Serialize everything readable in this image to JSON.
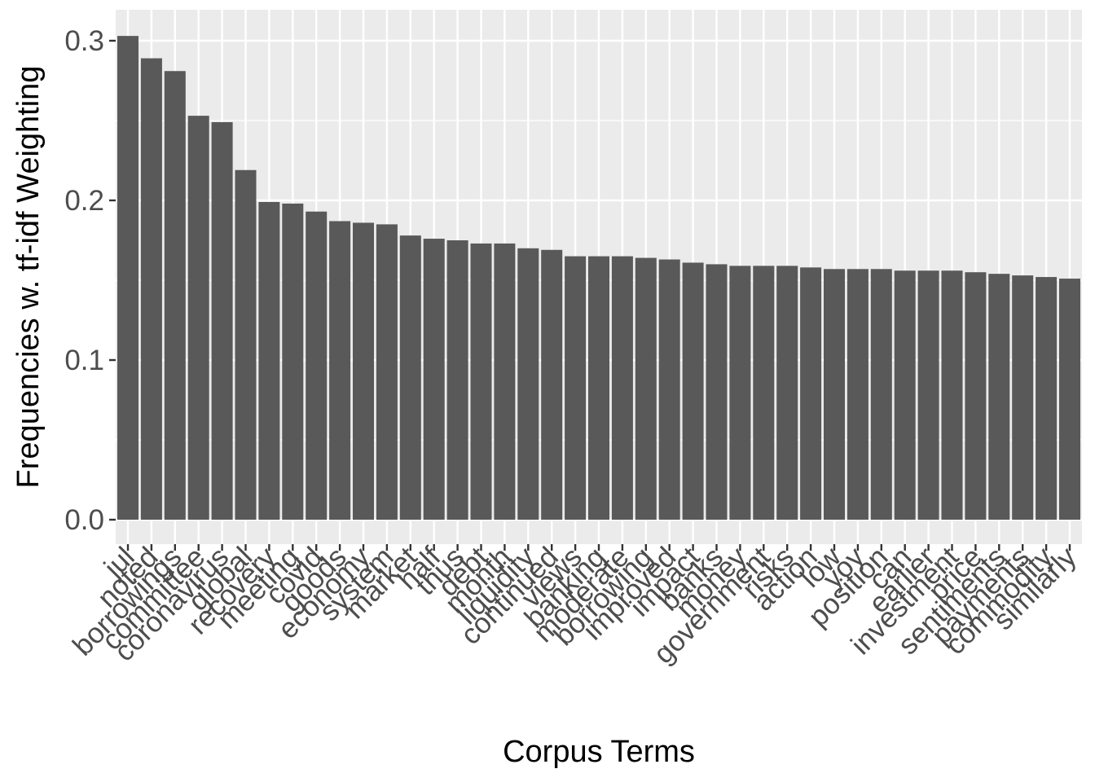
{
  "chart_data": {
    "type": "bar",
    "xlabel": "Corpus Terms",
    "ylabel": "Frequencies w. tf-idf Weighting",
    "ylim": [
      0,
      0.3
    ],
    "yticks": [
      "0.0",
      "0.1",
      "0.2",
      "0.3"
    ],
    "grid": true,
    "colors": {
      "bar": "#595959",
      "panel": "#ebebeb",
      "grid": "#ffffff"
    },
    "categories": [
      "jul",
      "noted",
      "borrowings",
      "committee",
      "coronavirus",
      "global",
      "recovery",
      "meeting",
      "covid",
      "goods",
      "economy",
      "system",
      "market",
      "half",
      "thus",
      "debt",
      "month",
      "liquidity",
      "continued",
      "views",
      "banking",
      "moderate",
      "borrowing",
      "improved",
      "impact",
      "banks",
      "money",
      "government",
      "risks",
      "action",
      "low",
      "yoy",
      "position",
      "can",
      "earlier",
      "investment",
      "price",
      "sentiments",
      "payments",
      "commodity",
      "similarly"
    ],
    "values": [
      0.303,
      0.289,
      0.281,
      0.253,
      0.249,
      0.219,
      0.199,
      0.198,
      0.193,
      0.187,
      0.186,
      0.185,
      0.178,
      0.176,
      0.175,
      0.173,
      0.173,
      0.17,
      0.169,
      0.165,
      0.165,
      0.165,
      0.164,
      0.163,
      0.161,
      0.16,
      0.159,
      0.159,
      0.159,
      0.158,
      0.157,
      0.157,
      0.157,
      0.156,
      0.156,
      0.156,
      0.155,
      0.154,
      0.153,
      0.152,
      0.151
    ]
  }
}
